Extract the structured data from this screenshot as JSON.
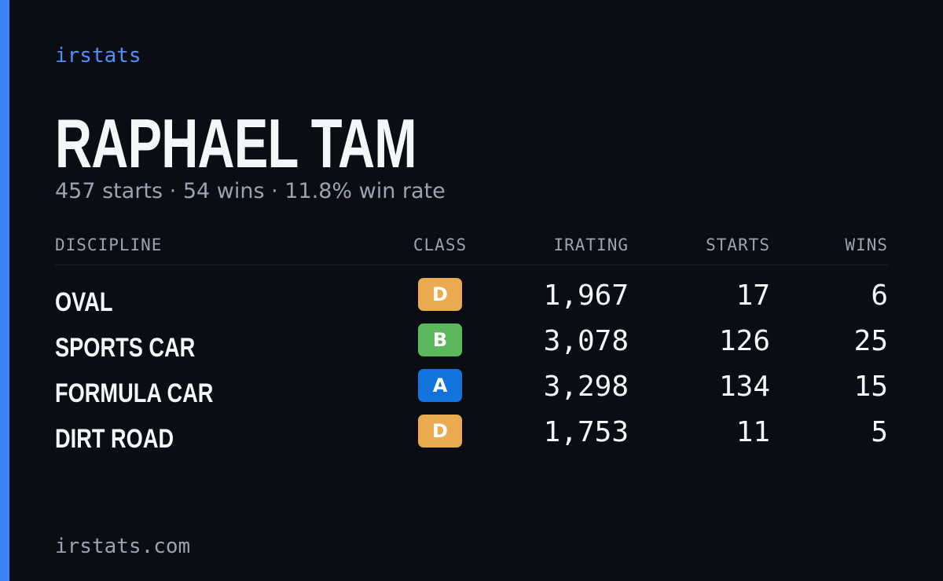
{
  "brand": "irstats",
  "name": "RAPHAEL TAM",
  "summary": "457 starts · 54 wins · 11.8% win rate",
  "table": {
    "headers": [
      "DISCIPLINE",
      "CLASS",
      "IRATING",
      "STARTS",
      "WINS"
    ],
    "rows": [
      [
        "OVAL",
        "D",
        "1,967",
        "17",
        "6"
      ],
      [
        "SPORTS CAR",
        "B",
        "3,078",
        "126",
        "25"
      ],
      [
        "FORMULA CAR",
        "A",
        "3,298",
        "134",
        "15"
      ],
      [
        "DIRT ROAD",
        "D",
        "1,753",
        "11",
        "5"
      ]
    ]
  },
  "class_colors": {
    "A": "#1273dc",
    "B": "#5cb85c",
    "D": "#e9aa50"
  },
  "footer": "irstats.com"
}
